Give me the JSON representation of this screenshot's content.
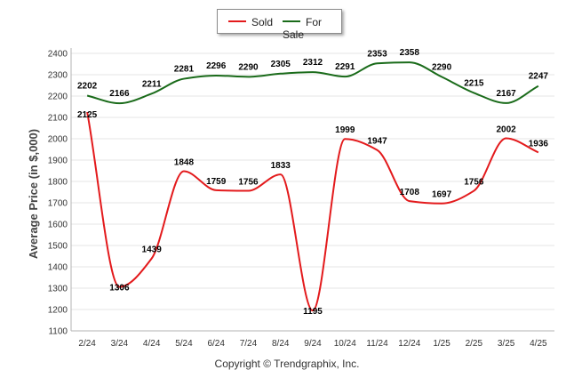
{
  "legend": {
    "sold_label": "Sold",
    "for_sale_label": "For Sale"
  },
  "copyright": "Copyright © Trendgraphix, Inc.",
  "chart_data": {
    "type": "line",
    "title": "",
    "xlabel": "",
    "ylabel": "Average Price (in $,000)",
    "ylim": [
      1100,
      2400
    ],
    "yticks": [
      1100,
      1200,
      1300,
      1400,
      1500,
      1600,
      1700,
      1800,
      1900,
      2000,
      2100,
      2200,
      2300,
      2400
    ],
    "grid": true,
    "legend_position": "top-center",
    "categories": [
      "2/24",
      "3/24",
      "4/24",
      "5/24",
      "6/24",
      "7/24",
      "8/24",
      "9/24",
      "10/24",
      "11/24",
      "12/24",
      "1/25",
      "2/25",
      "3/25",
      "4/25"
    ],
    "series": [
      {
        "name": "Sold",
        "color": "#e31a1c",
        "values": [
          2125,
          1306,
          1439,
          1848,
          1759,
          1756,
          1833,
          1195,
          1999,
          1947,
          1708,
          1697,
          1756,
          2002,
          1936
        ]
      },
      {
        "name": "For Sale",
        "color": "#1a6b1a",
        "values": [
          2202,
          2166,
          2211,
          2281,
          2296,
          2290,
          2305,
          2312,
          2291,
          2353,
          2358,
          2290,
          2215,
          2167,
          2247
        ]
      }
    ]
  }
}
